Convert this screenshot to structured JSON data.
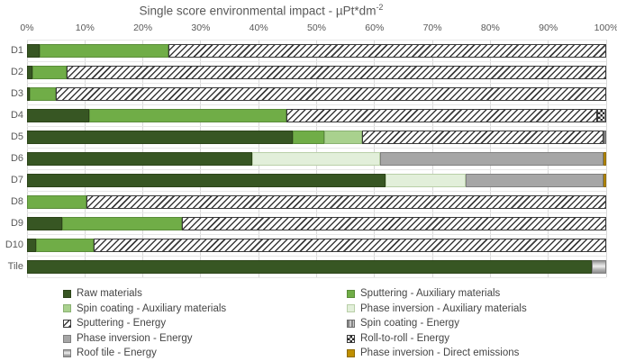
{
  "title": {
    "text": "Single score environmental impact - µPt*dm",
    "superscript": "-2"
  },
  "chart_data": {
    "type": "bar",
    "orientation": "horizontal",
    "stacked": true,
    "unit": "percent",
    "title": "Single score environmental impact - µPt*dm^-2",
    "x_axis": {
      "min": 0,
      "max": 100,
      "grid": true,
      "ticks": [
        "0%",
        "10%",
        "20%",
        "30%",
        "40%",
        "50%",
        "60%",
        "70%",
        "80%",
        "90%",
        "100%"
      ]
    },
    "categories": [
      "D1",
      "D2",
      "D3",
      "D4",
      "D5",
      "D6",
      "D7",
      "D8",
      "D9",
      "D10",
      "Tile"
    ],
    "series_styles": {
      "raw": {
        "label": "Raw materials",
        "pattern": "solid",
        "color": "#375623",
        "border": "#2c4419"
      },
      "sputter_aux": {
        "label": "Sputtering - Auxiliary materials",
        "pattern": "solid",
        "color": "#70AD47",
        "border": "#5a8c39"
      },
      "spin_aux": {
        "label": "Spin coating - Auxiliary materials",
        "pattern": "solid",
        "color": "#A9D18E",
        "border": "#8ab172"
      },
      "pi_aux": {
        "label": "Phase inversion - Auxiliary materials",
        "pattern": "solid",
        "color": "#E2EFDA",
        "border": "#b9cfa8"
      },
      "sputter_energy": {
        "label": "Sputtering - Energy",
        "pattern": "diagonal-hatch",
        "color": "#FFFFFF",
        "border": "#3a3a3a"
      },
      "spin_energy": {
        "label": "Spin coating - Energy",
        "pattern": "vertical-stripes",
        "color": "#A6A6A6",
        "border": "#6e6e6e"
      },
      "pi_energy": {
        "label": "Phase inversion - Energy",
        "pattern": "solid",
        "color": "#A6A6A6",
        "border": "#7f7f7f"
      },
      "rtr_energy": {
        "label": "Roll-to-roll - Energy",
        "pattern": "checker",
        "color": "#FFFFFF",
        "border": "#3a3a3a"
      },
      "tile_energy": {
        "label": "Roof tile - Energy",
        "pattern": "gradient",
        "color": "#BFBFBF",
        "border": "#7f7f7f"
      },
      "pi_direct": {
        "label": "Phase inversion - Direct emissions",
        "pattern": "solid",
        "color": "#BF8F00",
        "border": "#8f6b00"
      }
    },
    "rows": [
      {
        "category": "D1",
        "segments": [
          [
            "raw",
            2.2
          ],
          [
            "sputter_aux",
            22.2
          ],
          [
            "sputter_energy",
            75.6
          ]
        ]
      },
      {
        "category": "D2",
        "segments": [
          [
            "raw",
            1.0
          ],
          [
            "sputter_aux",
            5.8
          ],
          [
            "sputter_energy",
            93.2
          ]
        ]
      },
      {
        "category": "D3",
        "segments": [
          [
            "raw",
            0.5
          ],
          [
            "sputter_aux",
            4.5
          ],
          [
            "sputter_energy",
            95.0
          ]
        ]
      },
      {
        "category": "D4",
        "segments": [
          [
            "raw",
            10.7
          ],
          [
            "sputter_aux",
            34.1
          ],
          [
            "sputter_energy",
            53.7
          ],
          [
            "rtr_energy",
            1.5
          ]
        ]
      },
      {
        "category": "D5",
        "segments": [
          [
            "raw",
            45.9
          ],
          [
            "sputter_aux",
            5.4
          ],
          [
            "spin_aux",
            6.6
          ],
          [
            "sputter_energy",
            41.6
          ],
          [
            "spin_energy",
            0.5
          ]
        ]
      },
      {
        "category": "D6",
        "segments": [
          [
            "raw",
            38.9
          ],
          [
            "pi_aux",
            22.1
          ],
          [
            "pi_energy",
            38.5
          ],
          [
            "pi_direct",
            0.5
          ]
        ]
      },
      {
        "category": "D7",
        "segments": [
          [
            "raw",
            61.9
          ],
          [
            "pi_aux",
            13.8
          ],
          [
            "pi_energy",
            23.8
          ],
          [
            "pi_direct",
            0.5
          ]
        ]
      },
      {
        "category": "D8",
        "segments": [
          [
            "sputter_aux",
            10.3
          ],
          [
            "sputter_energy",
            89.7
          ]
        ]
      },
      {
        "category": "D9",
        "segments": [
          [
            "raw",
            6.1
          ],
          [
            "sputter_aux",
            20.6
          ],
          [
            "sputter_energy",
            73.3
          ]
        ]
      },
      {
        "category": "D10",
        "segments": [
          [
            "raw",
            1.6
          ],
          [
            "sputter_aux",
            9.9
          ],
          [
            "sputter_energy",
            88.5
          ]
        ]
      },
      {
        "category": "Tile",
        "segments": [
          [
            "raw",
            97.5
          ],
          [
            "tile_energy",
            2.5
          ]
        ]
      }
    ],
    "legend": {
      "position": "bottom",
      "columns": [
        [
          "raw",
          "spin_aux",
          "sputter_energy",
          "pi_energy",
          "tile_energy"
        ],
        [
          "sputter_aux",
          "pi_aux",
          "spin_energy",
          "rtr_energy",
          "pi_direct"
        ]
      ]
    }
  }
}
